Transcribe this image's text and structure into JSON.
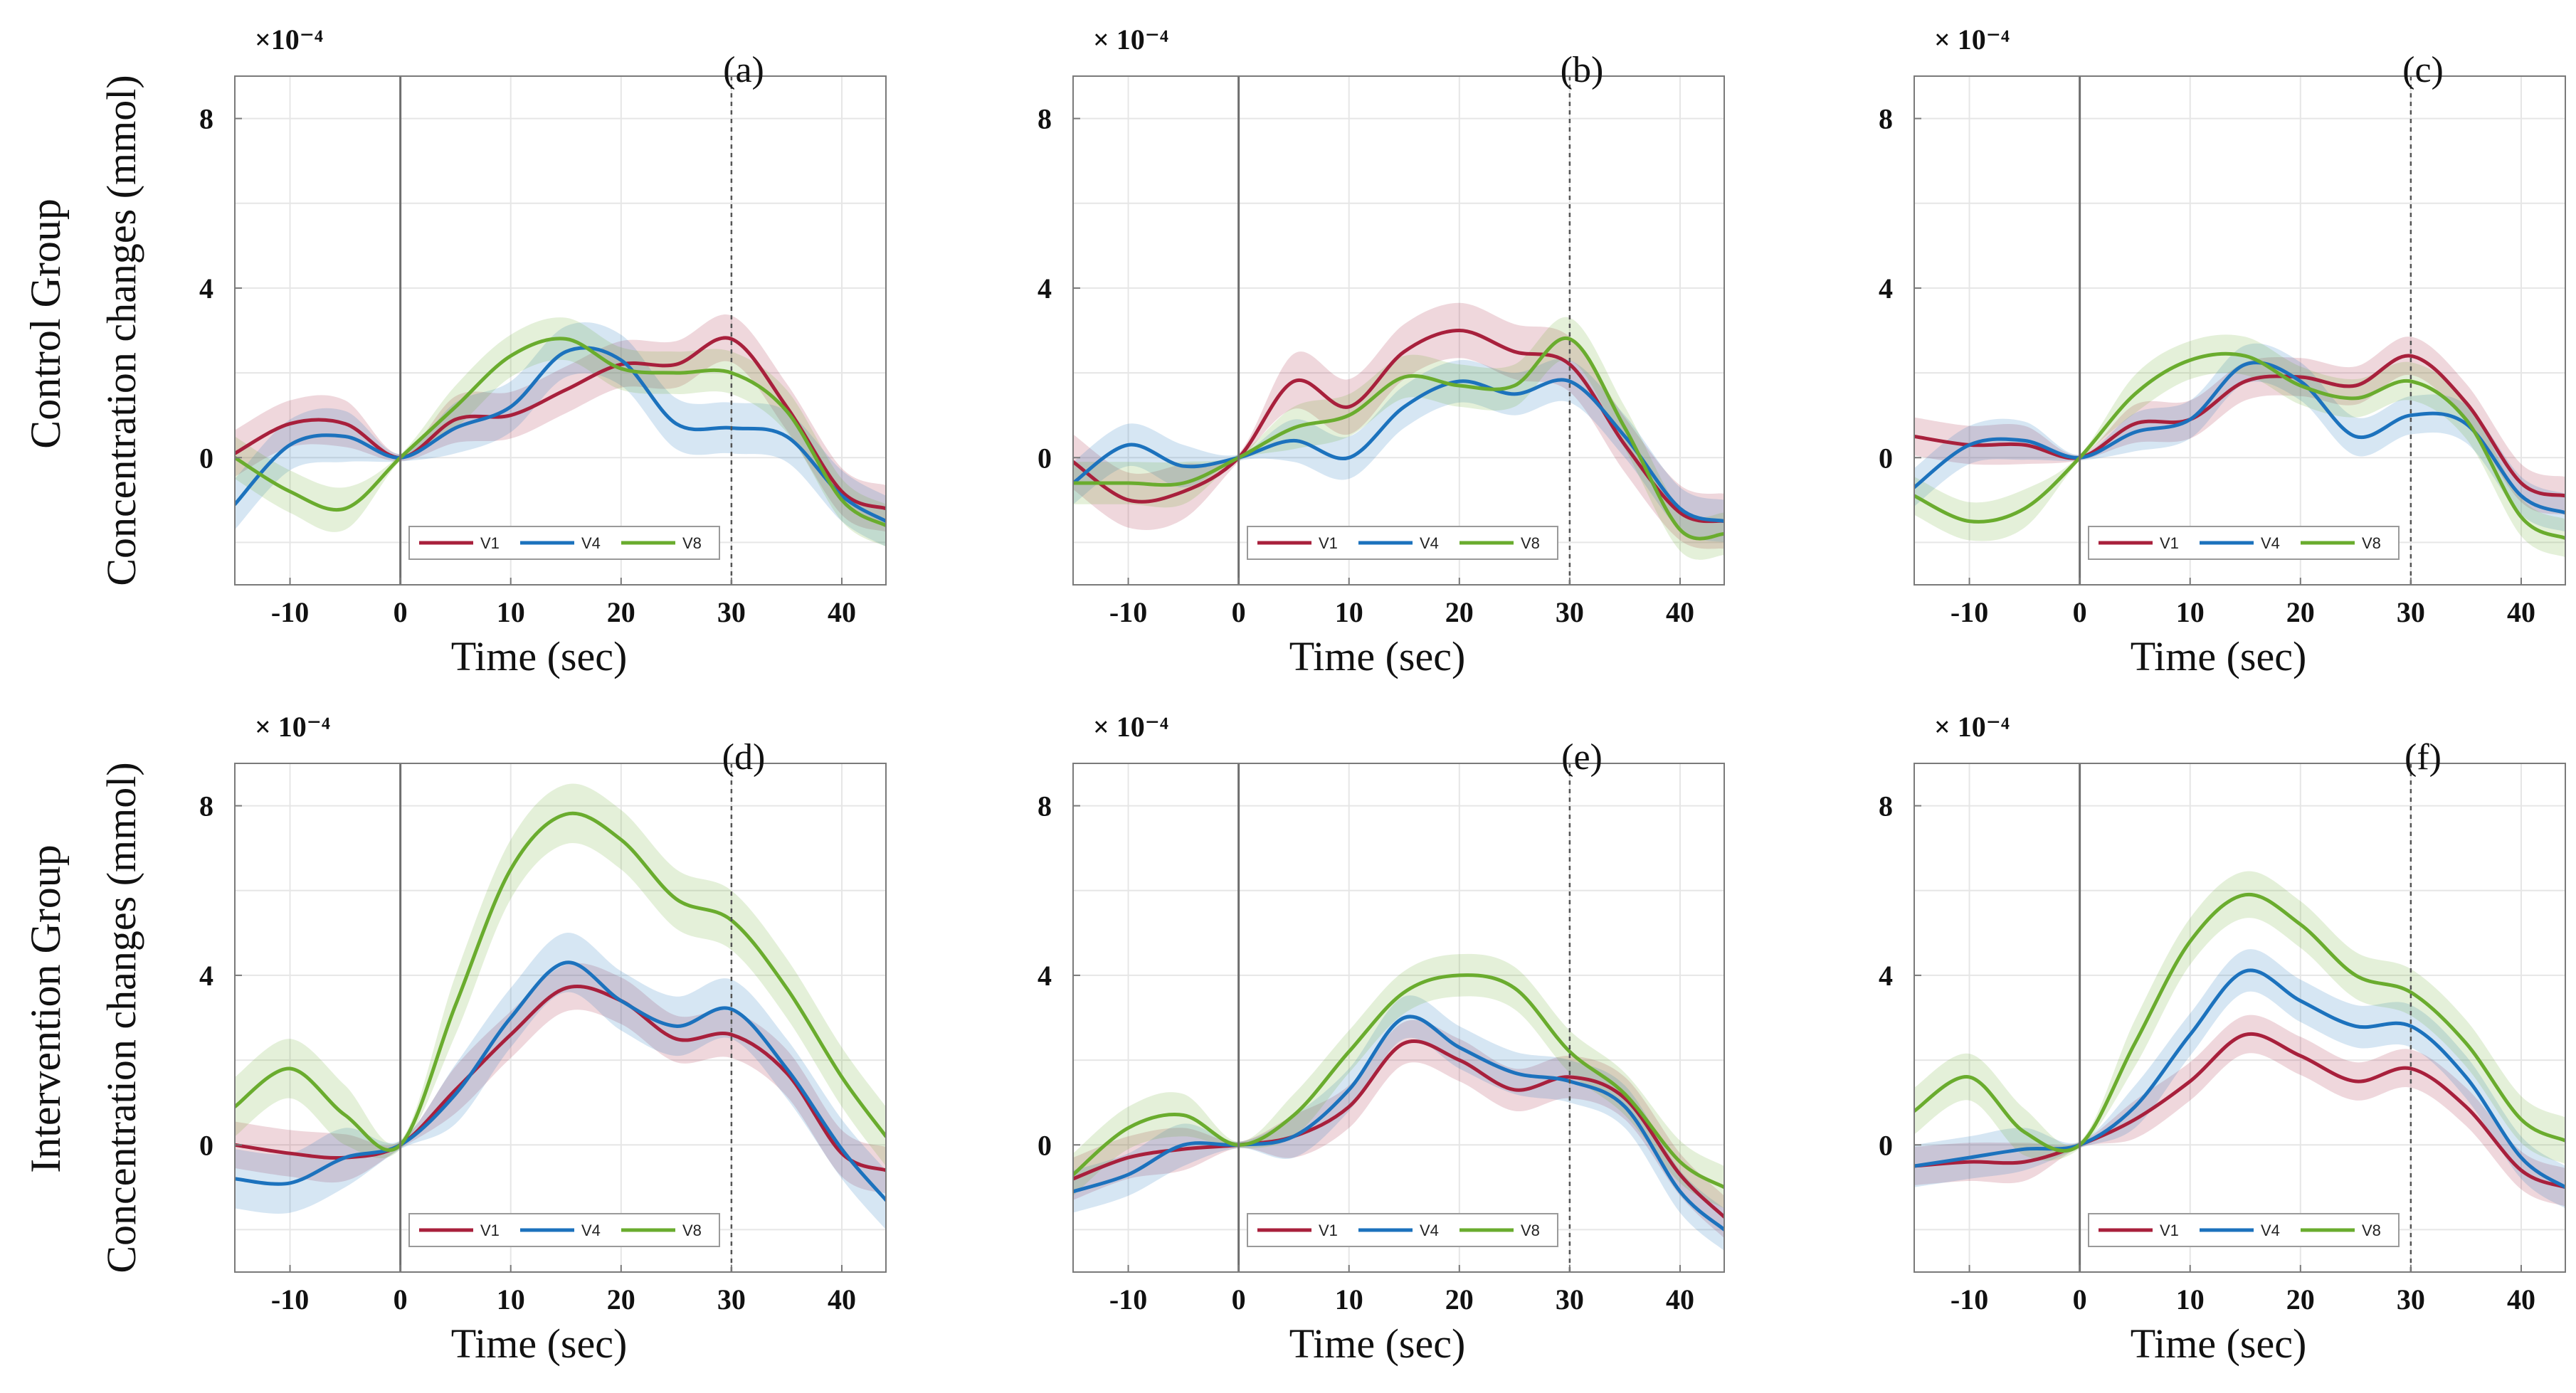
{
  "figure": {
    "row_labels": [
      "Control Group",
      "Intervention Group"
    ],
    "series_colors": {
      "V1": "#a8203c",
      "V4": "#1c72bd",
      "V8": "#6aac2e"
    }
  },
  "chart_data": [
    {
      "type": "line",
      "panel": "(a)",
      "group": "Control Group",
      "xlabel": "Time (sec)",
      "ylabel": "Concentration changes (mmol)",
      "y_exponent": "×10⁻⁴",
      "xlim": [
        -15,
        44
      ],
      "ylim": [
        -3,
        9
      ],
      "xticks": [
        -10,
        0,
        10,
        20,
        30,
        40
      ],
      "yticks": [
        0,
        4,
        8
      ],
      "vlines": [
        0,
        30
      ],
      "legend": [
        "V1",
        "V4",
        "V8"
      ],
      "x": [
        -15,
        -10,
        -5,
        0,
        5,
        10,
        15,
        20,
        25,
        30,
        35,
        40,
        44
      ],
      "series": [
        {
          "name": "V1",
          "values": [
            0.1,
            0.8,
            0.8,
            0.0,
            0.9,
            1.0,
            1.6,
            2.2,
            2.2,
            2.8,
            1.2,
            -0.8,
            -1.2
          ],
          "err": 0.55
        },
        {
          "name": "V4",
          "values": [
            -1.1,
            0.3,
            0.5,
            0.0,
            0.7,
            1.2,
            2.5,
            2.3,
            0.8,
            0.7,
            0.5,
            -0.9,
            -1.5
          ],
          "err": 0.6
        },
        {
          "name": "V8",
          "values": [
            0.0,
            -0.8,
            -1.2,
            0.0,
            1.2,
            2.4,
            2.8,
            2.1,
            2.0,
            2.0,
            1.1,
            -1.0,
            -1.6
          ],
          "err": 0.5
        }
      ]
    },
    {
      "type": "line",
      "panel": "(b)",
      "group": "Control Group",
      "xlabel": "Time (sec)",
      "ylabel": "",
      "y_exponent": "× 10⁻⁴",
      "xlim": [
        -15,
        44
      ],
      "ylim": [
        -3,
        9
      ],
      "xticks": [
        -10,
        0,
        10,
        20,
        30,
        40
      ],
      "yticks": [
        0,
        4,
        8
      ],
      "vlines": [
        0,
        30
      ],
      "legend": [
        "V1",
        "V4",
        "V8"
      ],
      "x": [
        -15,
        -10,
        -5,
        0,
        5,
        10,
        15,
        20,
        25,
        30,
        35,
        40,
        44
      ],
      "series": [
        {
          "name": "V1",
          "values": [
            -0.1,
            -1.0,
            -0.8,
            0.0,
            1.8,
            1.2,
            2.5,
            3.0,
            2.5,
            2.2,
            0.3,
            -1.3,
            -1.5
          ],
          "err": 0.65
        },
        {
          "name": "V4",
          "values": [
            -0.6,
            0.3,
            -0.2,
            0.0,
            0.4,
            0.0,
            1.2,
            1.8,
            1.5,
            1.8,
            0.5,
            -1.2,
            -1.5
          ],
          "err": 0.5
        },
        {
          "name": "V8",
          "values": [
            -0.6,
            -0.6,
            -0.6,
            0.0,
            0.7,
            1.0,
            1.9,
            1.7,
            1.7,
            2.8,
            0.7,
            -1.7,
            -1.8
          ],
          "err": 0.5
        }
      ]
    },
    {
      "type": "line",
      "panel": "(c)",
      "group": "Control Group",
      "xlabel": "Time (sec)",
      "ylabel": "",
      "y_exponent": "× 10⁻⁴",
      "xlim": [
        -15,
        44
      ],
      "ylim": [
        -3,
        9
      ],
      "xticks": [
        -10,
        0,
        10,
        20,
        30,
        40
      ],
      "yticks": [
        0,
        4,
        8
      ],
      "vlines": [
        0,
        30
      ],
      "legend": [
        "V1",
        "V4",
        "V8"
      ],
      "x": [
        -15,
        -10,
        -5,
        0,
        5,
        10,
        15,
        20,
        25,
        30,
        35,
        40,
        44
      ],
      "series": [
        {
          "name": "V1",
          "values": [
            0.5,
            0.3,
            0.3,
            0.0,
            0.8,
            0.9,
            1.8,
            1.9,
            1.7,
            2.4,
            1.3,
            -0.6,
            -0.9
          ],
          "err": 0.45
        },
        {
          "name": "V4",
          "values": [
            -0.7,
            0.3,
            0.4,
            0.0,
            0.6,
            0.9,
            2.2,
            1.8,
            0.5,
            1.0,
            0.8,
            -0.9,
            -1.3
          ],
          "err": 0.45
        },
        {
          "name": "V8",
          "values": [
            -0.9,
            -1.5,
            -1.2,
            0.0,
            1.5,
            2.3,
            2.4,
            1.7,
            1.4,
            1.8,
            0.9,
            -1.4,
            -1.9
          ],
          "err": 0.45
        }
      ]
    },
    {
      "type": "line",
      "panel": "(d)",
      "group": "Intervention Group",
      "xlabel": "Time (sec)",
      "ylabel": "Concentration changes (mmol)",
      "y_exponent": "× 10⁻⁴",
      "xlim": [
        -15,
        44
      ],
      "ylim": [
        -3,
        9
      ],
      "xticks": [
        -10,
        0,
        10,
        20,
        30,
        40
      ],
      "yticks": [
        0,
        4,
        8
      ],
      "vlines": [
        0,
        30
      ],
      "legend": [
        "V1",
        "V4",
        "V8"
      ],
      "x": [
        -15,
        -10,
        -5,
        0,
        5,
        10,
        15,
        20,
        25,
        30,
        35,
        40,
        44
      ],
      "series": [
        {
          "name": "V1",
          "values": [
            0.0,
            -0.2,
            -0.3,
            0.0,
            1.3,
            2.6,
            3.7,
            3.4,
            2.5,
            2.6,
            1.7,
            -0.2,
            -0.6
          ],
          "err": 0.55
        },
        {
          "name": "V4",
          "values": [
            -0.8,
            -0.9,
            -0.3,
            0.0,
            1.2,
            3.0,
            4.3,
            3.4,
            2.8,
            3.2,
            1.8,
            -0.1,
            -1.3
          ],
          "err": 0.7
        },
        {
          "name": "V8",
          "values": [
            0.9,
            1.8,
            0.7,
            0.0,
            3.3,
            6.5,
            7.8,
            7.2,
            5.8,
            5.3,
            3.7,
            1.6,
            0.2
          ],
          "err": 0.7
        }
      ]
    },
    {
      "type": "line",
      "panel": "(e)",
      "group": "Intervention Group",
      "xlabel": "Time (sec)",
      "ylabel": "",
      "y_exponent": "× 10⁻⁴",
      "xlim": [
        -15,
        44
      ],
      "ylim": [
        -3,
        9
      ],
      "xticks": [
        -10,
        0,
        10,
        20,
        30,
        40
      ],
      "yticks": [
        0,
        4,
        8
      ],
      "vlines": [
        0,
        30
      ],
      "legend": [
        "V1",
        "V4",
        "V8"
      ],
      "x": [
        -15,
        -10,
        -5,
        0,
        5,
        10,
        15,
        20,
        25,
        30,
        35,
        40,
        44
      ],
      "series": [
        {
          "name": "V1",
          "values": [
            -0.8,
            -0.3,
            -0.1,
            0.0,
            0.2,
            0.9,
            2.4,
            2.0,
            1.3,
            1.6,
            1.1,
            -0.7,
            -1.7
          ],
          "err": 0.5
        },
        {
          "name": "V4",
          "values": [
            -1.1,
            -0.7,
            0.0,
            0.0,
            0.2,
            1.3,
            3.0,
            2.3,
            1.7,
            1.5,
            0.9,
            -1.1,
            -2.0
          ],
          "err": 0.5
        },
        {
          "name": "V8",
          "values": [
            -0.7,
            0.4,
            0.7,
            0.0,
            0.7,
            2.2,
            3.6,
            4.0,
            3.7,
            2.2,
            1.2,
            -0.4,
            -1.0
          ],
          "err": 0.5
        }
      ]
    },
    {
      "type": "line",
      "panel": "(f)",
      "group": "Intervention Group",
      "xlabel": "Time (sec)",
      "ylabel": "",
      "y_exponent": "× 10⁻⁴",
      "xlim": [
        -15,
        44
      ],
      "ylim": [
        -3,
        9
      ],
      "xticks": [
        -10,
        0,
        10,
        20,
        30,
        40
      ],
      "yticks": [
        0,
        4,
        8
      ],
      "vlines": [
        0,
        30
      ],
      "legend": [
        "V1",
        "V4",
        "V8"
      ],
      "x": [
        -15,
        -10,
        -5,
        0,
        5,
        10,
        15,
        20,
        25,
        30,
        35,
        40,
        44
      ],
      "series": [
        {
          "name": "V1",
          "values": [
            -0.5,
            -0.4,
            -0.4,
            0.0,
            0.6,
            1.5,
            2.6,
            2.1,
            1.5,
            1.8,
            0.9,
            -0.6,
            -1.0
          ],
          "err": 0.45
        },
        {
          "name": "V4",
          "values": [
            -0.5,
            -0.3,
            -0.1,
            0.0,
            0.9,
            2.6,
            4.1,
            3.4,
            2.8,
            2.8,
            1.6,
            -0.3,
            -1.0
          ],
          "err": 0.5
        },
        {
          "name": "V8",
          "values": [
            0.8,
            1.6,
            0.3,
            0.0,
            2.4,
            4.8,
            5.9,
            5.2,
            4.0,
            3.6,
            2.4,
            0.6,
            0.1
          ],
          "err": 0.55
        }
      ]
    }
  ]
}
